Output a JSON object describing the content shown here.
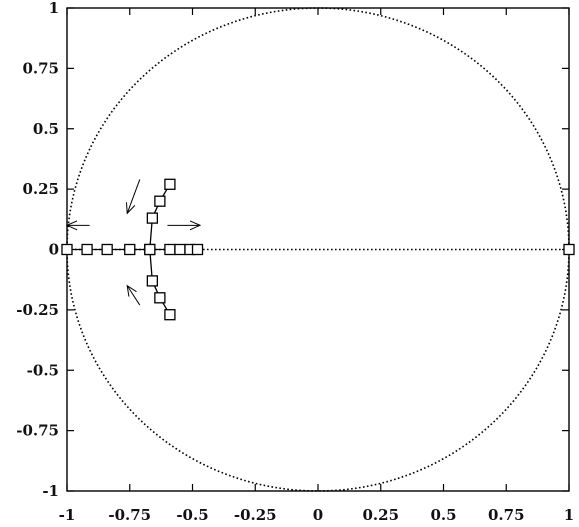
{
  "chart_data": {
    "type": "scatter",
    "title": "",
    "xlabel": "",
    "ylabel": "",
    "xlim": [
      -1,
      1
    ],
    "ylim": [
      -1,
      1
    ],
    "xticks": [
      "-1",
      "-0.75",
      "-0.5",
      "-0.25",
      "0",
      "0.25",
      "0.5",
      "0.75",
      "1"
    ],
    "yticks": [
      "1",
      "0.75",
      "0.5",
      "0.25",
      "0",
      "-0.25",
      "-0.5",
      "-0.75",
      "-1"
    ],
    "xtick_values": [
      -1,
      -0.75,
      -0.5,
      -0.25,
      0,
      0.25,
      0.5,
      0.75,
      1
    ],
    "ytick_values": [
      1,
      0.75,
      0.5,
      0.25,
      0,
      -0.25,
      -0.5,
      -0.75,
      -1
    ],
    "grid": false,
    "legend": "none",
    "unit_circle": {
      "center": [
        0,
        0
      ],
      "radius": 1,
      "style": "dotted"
    },
    "real_axis": {
      "y": 0,
      "x_range": [
        -1,
        1
      ],
      "style": "dotted"
    },
    "series": [
      {
        "marker": "square",
        "points": [
          {
            "x": -1.0,
            "y": 0
          },
          {
            "x": -0.92,
            "y": 0
          },
          {
            "x": -0.84,
            "y": 0
          },
          {
            "x": -0.75,
            "y": 0
          },
          {
            "x": -0.67,
            "y": 0
          },
          {
            "x": -0.59,
            "y": 0
          },
          {
            "x": -0.55,
            "y": 0
          },
          {
            "x": -0.51,
            "y": 0
          },
          {
            "x": -0.48,
            "y": 0
          },
          {
            "x": 1.0,
            "y": 0
          }
        ]
      },
      {
        "marker": "square",
        "line": true,
        "points": [
          {
            "x": -0.59,
            "y": 0.27
          },
          {
            "x": -0.63,
            "y": 0.2
          },
          {
            "x": -0.66,
            "y": 0.13
          },
          {
            "x": -0.67,
            "y": 0
          },
          {
            "x": -0.66,
            "y": -0.13
          },
          {
            "x": -0.63,
            "y": -0.2
          },
          {
            "x": -0.59,
            "y": -0.27
          }
        ]
      }
    ],
    "annotations": [
      {
        "type": "arrow",
        "from": [
          -0.91,
          0.1
        ],
        "to": [
          -1.0,
          0.1
        ],
        "direction": "left"
      },
      {
        "type": "arrow",
        "from": [
          -0.6,
          0.1
        ],
        "to": [
          -0.47,
          0.1
        ],
        "direction": "right"
      },
      {
        "type": "arrow",
        "from": [
          -0.71,
          0.29
        ],
        "to": [
          -0.76,
          0.15
        ],
        "direction": "down"
      },
      {
        "type": "arrow",
        "from": [
          -0.71,
          -0.23
        ],
        "to": [
          -0.76,
          -0.15
        ],
        "direction": "up"
      }
    ],
    "colors": {
      "ink": "#000000",
      "background": "#ffffff"
    }
  }
}
